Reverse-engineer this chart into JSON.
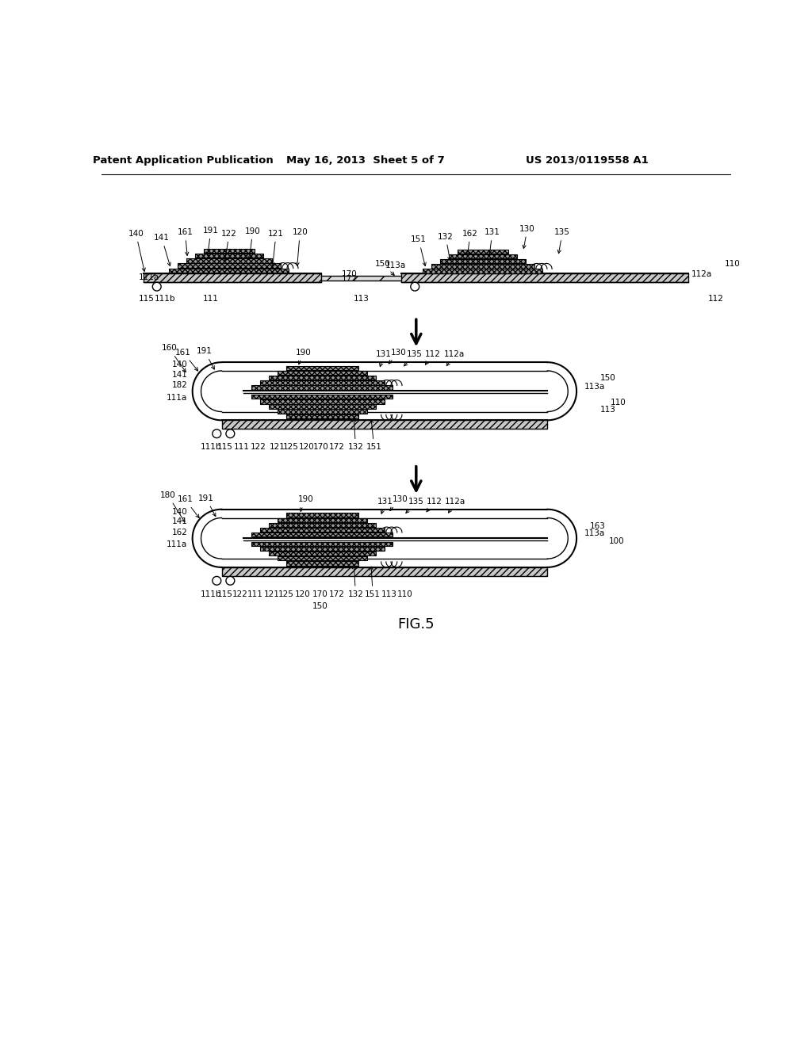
{
  "header_left": "Patent Application Publication",
  "header_mid": "May 16, 2013  Sheet 5 of 7",
  "header_right": "US 2013/0119558 A1",
  "fig_label": "FIG.5",
  "bg_color": "#ffffff"
}
